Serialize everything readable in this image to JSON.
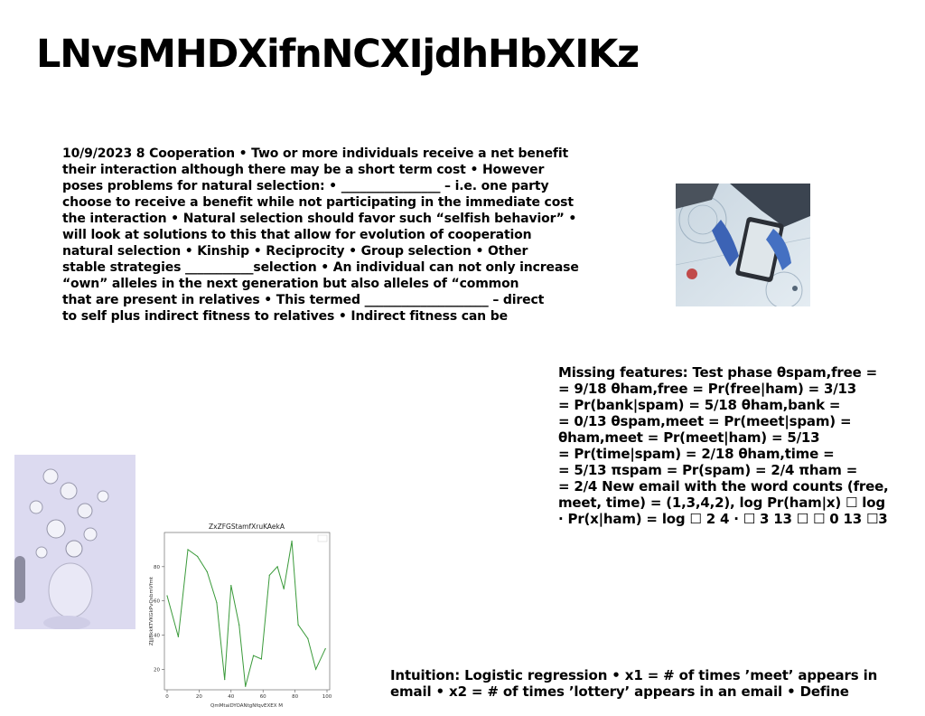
{
  "page": {
    "title": "LNvsMHDXifnNCXIjdhHbXIKz"
  },
  "bio_text": {
    "lines": [
      "10/9/2023 8 Cooperation • Two or more individuals receive a net benefit",
      "their interaction although there may be a short term cost • However",
      "poses problems for natural selection: • ________________ – i.e. one party",
      "choose to receive a benefit while not participating in the immediate cost",
      "the interaction • Natural selection should favor such “selfish behavior” •",
      "will look at solutions to this that allow for evolution of cooperation",
      "natural selection • Kinship • Reciprocity • Group selection • Other",
      "stable strategies ___________selection • An individual can not only increase",
      "“own” alleles in the next generation but also alleles of “common",
      "that are present in relatives • This termed ____________________ – direct",
      "to self plus indirect fitness to relatives • Indirect fitness can be"
    ]
  },
  "nb_text": {
    "lines": [
      "Missing features: Test phase θspam,free =",
      "= 9/18 θham,free = Pr(free|ham) = 3/13",
      "= Pr(bank|spam) = 5/18 θham,bank =",
      "= 0/13 θspam,meet = Pr(meet|spam) =",
      "θham,meet = Pr(meet|ham) = 5/13",
      "= Pr(time|spam) = 2/18 θham,time =",
      "= 5/13 πspam = Pr(spam) = 2/4 πham =",
      "= 2/4 New email with the word counts (free,",
      "meet, time) = (1,3,4,2), log Pr(ham|x) ☐ log",
      "· Pr(x|ham) = log ☐ 2 4 · ☐ 3 13 ☐ ☐ 0 13 ☐3"
    ]
  },
  "lr_text": {
    "lines": [
      "Intuition: Logistic regression • x1 = # of times ’meet’ appears in",
      "email • x2 = # of times ’lottery’ appears in an email • Define"
    ]
  },
  "chart_data": {
    "type": "line",
    "title": "ZxZFGStamfXruKAekA",
    "xlabel": "QmMtaiDYOANtgNfqvEXEX M",
    "ylabel": "ZJjjBkkKTVKGkPvQxbmVfmt",
    "xlim": [
      0,
      100
    ],
    "ylim": [
      8,
      100
    ],
    "xticks": [
      0,
      20,
      40,
      60,
      80,
      100
    ],
    "yticks": [
      20,
      40,
      60,
      80
    ],
    "grid": false,
    "color": "#3a9a3a",
    "x": [
      0,
      7,
      13,
      19,
      25,
      31,
      36,
      40,
      45,
      49,
      54,
      59,
      64,
      69,
      73,
      78,
      82,
      88,
      93,
      99
    ],
    "y": [
      63,
      39,
      90,
      86,
      77,
      59,
      14,
      69,
      46,
      10,
      28,
      26,
      75,
      80,
      67,
      95,
      46,
      38,
      20,
      32
    ]
  }
}
